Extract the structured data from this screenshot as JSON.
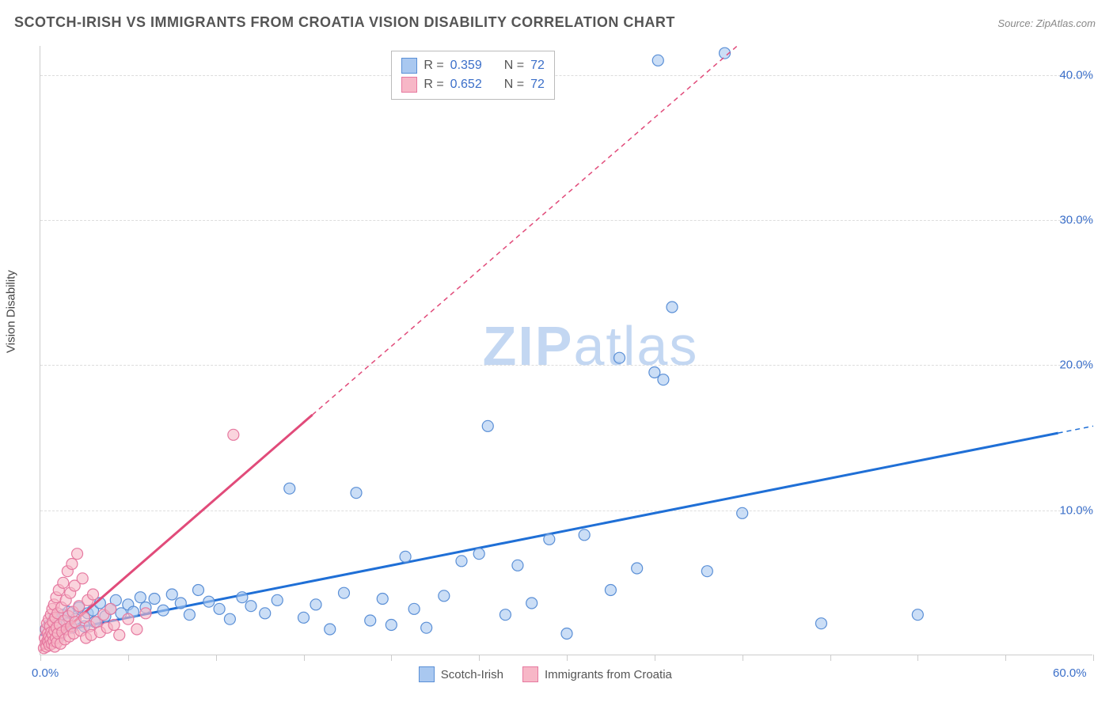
{
  "title": "SCOTCH-IRISH VS IMMIGRANTS FROM CROATIA VISION DISABILITY CORRELATION CHART",
  "source_label": "Source:",
  "source_name": "ZipAtlas.com",
  "y_axis_label": "Vision Disability",
  "watermark_bold": "ZIP",
  "watermark_light": "atlas",
  "chart": {
    "type": "scatter",
    "xlim": [
      0,
      60
    ],
    "ylim": [
      0,
      42
    ],
    "x_origin_label": "0.0%",
    "x_max_label": "60.0%",
    "y_ticks": [
      {
        "value": 10,
        "label": "10.0%"
      },
      {
        "value": 20,
        "label": "20.0%"
      },
      {
        "value": 30,
        "label": "30.0%"
      },
      {
        "value": 40,
        "label": "40.0%"
      }
    ],
    "x_tick_positions": [
      0,
      5,
      10,
      15,
      20,
      25,
      30,
      35,
      40,
      45,
      50,
      55,
      60
    ],
    "background_color": "#ffffff",
    "grid_color": "#dddddd",
    "axis_color": "#cccccc",
    "marker_radius": 7,
    "marker_stroke_width": 1.2,
    "trend_line_width": 3,
    "trend_extrapolate_dash": "6,5",
    "series": [
      {
        "id": "scotch_irish",
        "label": "Scotch-Irish",
        "color_fill": "#a9c8f0",
        "color_stroke": "#5a8fd6",
        "trend_color": "#1f6fd6",
        "r_value": "0.359",
        "n_value": "72",
        "trend_solid_x_end": 58,
        "trend": {
          "slope": 0.24,
          "intercept": 1.4
        },
        "points": [
          [
            0.3,
            1.8
          ],
          [
            0.5,
            2.1
          ],
          [
            0.7,
            1.5
          ],
          [
            0.8,
            2.6
          ],
          [
            1.0,
            2.0
          ],
          [
            1.1,
            1.3
          ],
          [
            1.3,
            2.8
          ],
          [
            1.5,
            2.2
          ],
          [
            1.6,
            3.0
          ],
          [
            1.8,
            1.9
          ],
          [
            2.0,
            2.5
          ],
          [
            2.2,
            3.3
          ],
          [
            2.5,
            2.0
          ],
          [
            2.7,
            2.9
          ],
          [
            3.0,
            3.1
          ],
          [
            3.1,
            2.3
          ],
          [
            3.4,
            3.6
          ],
          [
            3.7,
            2.7
          ],
          [
            4.0,
            3.2
          ],
          [
            4.3,
            3.8
          ],
          [
            4.6,
            2.9
          ],
          [
            5.0,
            3.5
          ],
          [
            5.3,
            3.0
          ],
          [
            5.7,
            4.0
          ],
          [
            6.0,
            3.3
          ],
          [
            6.5,
            3.9
          ],
          [
            7.0,
            3.1
          ],
          [
            7.5,
            4.2
          ],
          [
            8.0,
            3.6
          ],
          [
            8.5,
            2.8
          ],
          [
            9.0,
            4.5
          ],
          [
            9.6,
            3.7
          ],
          [
            10.2,
            3.2
          ],
          [
            10.8,
            2.5
          ],
          [
            11.5,
            4.0
          ],
          [
            12.0,
            3.4
          ],
          [
            12.8,
            2.9
          ],
          [
            13.5,
            3.8
          ],
          [
            14.2,
            11.5
          ],
          [
            15.0,
            2.6
          ],
          [
            15.7,
            3.5
          ],
          [
            16.5,
            1.8
          ],
          [
            17.3,
            4.3
          ],
          [
            18.0,
            11.2
          ],
          [
            18.8,
            2.4
          ],
          [
            19.5,
            3.9
          ],
          [
            20.0,
            2.1
          ],
          [
            20.8,
            6.8
          ],
          [
            21.3,
            3.2
          ],
          [
            22.0,
            1.9
          ],
          [
            23.0,
            4.1
          ],
          [
            24.0,
            6.5
          ],
          [
            25.0,
            7.0
          ],
          [
            25.5,
            15.8
          ],
          [
            26.5,
            2.8
          ],
          [
            27.2,
            6.2
          ],
          [
            28.0,
            3.6
          ],
          [
            29.0,
            8.0
          ],
          [
            30.0,
            1.5
          ],
          [
            31.0,
            8.3
          ],
          [
            32.5,
            4.5
          ],
          [
            33.0,
            20.5
          ],
          [
            34.0,
            6.0
          ],
          [
            35.0,
            19.5
          ],
          [
            35.5,
            19.0
          ],
          [
            36.0,
            24.0
          ],
          [
            38.0,
            5.8
          ],
          [
            40.0,
            9.8
          ],
          [
            44.5,
            2.2
          ],
          [
            50.0,
            2.8
          ],
          [
            39.0,
            41.5
          ],
          [
            35.2,
            41.0
          ]
        ]
      },
      {
        "id": "croatia",
        "label": "Immigrants from Croatia",
        "color_fill": "#f7b7c7",
        "color_stroke": "#e679a0",
        "trend_color": "#e14b7a",
        "r_value": "0.652",
        "n_value": "72",
        "trend_solid_x_end": 15.5,
        "trend": {
          "slope": 1.05,
          "intercept": 0.3
        },
        "points": [
          [
            0.2,
            0.5
          ],
          [
            0.25,
            1.2
          ],
          [
            0.3,
            0.8
          ],
          [
            0.32,
            1.8
          ],
          [
            0.35,
            0.6
          ],
          [
            0.38,
            2.2
          ],
          [
            0.4,
            1.0
          ],
          [
            0.42,
            1.5
          ],
          [
            0.45,
            0.9
          ],
          [
            0.48,
            2.5
          ],
          [
            0.5,
            1.3
          ],
          [
            0.52,
            0.7
          ],
          [
            0.55,
            2.0
          ],
          [
            0.58,
            1.1
          ],
          [
            0.6,
            2.8
          ],
          [
            0.62,
            1.6
          ],
          [
            0.65,
            0.8
          ],
          [
            0.68,
            3.2
          ],
          [
            0.7,
            1.4
          ],
          [
            0.72,
            2.3
          ],
          [
            0.75,
            1.0
          ],
          [
            0.78,
            3.5
          ],
          [
            0.8,
            1.7
          ],
          [
            0.82,
            0.6
          ],
          [
            0.85,
            2.6
          ],
          [
            0.88,
            1.2
          ],
          [
            0.9,
            4.0
          ],
          [
            0.92,
            1.9
          ],
          [
            0.95,
            0.9
          ],
          [
            0.98,
            2.9
          ],
          [
            1.0,
            1.5
          ],
          [
            1.05,
            4.5
          ],
          [
            1.1,
            2.1
          ],
          [
            1.15,
            0.8
          ],
          [
            1.2,
            3.3
          ],
          [
            1.25,
            1.6
          ],
          [
            1.3,
            5.0
          ],
          [
            1.35,
            2.4
          ],
          [
            1.4,
            1.1
          ],
          [
            1.45,
            3.8
          ],
          [
            1.5,
            1.8
          ],
          [
            1.55,
            5.8
          ],
          [
            1.6,
            2.7
          ],
          [
            1.65,
            1.3
          ],
          [
            1.7,
            4.3
          ],
          [
            1.75,
            2.0
          ],
          [
            1.8,
            6.3
          ],
          [
            1.85,
            3.0
          ],
          [
            1.9,
            1.5
          ],
          [
            1.95,
            4.8
          ],
          [
            2.0,
            2.3
          ],
          [
            2.1,
            7.0
          ],
          [
            2.2,
            3.4
          ],
          [
            2.3,
            1.7
          ],
          [
            2.4,
            5.3
          ],
          [
            2.5,
            2.6
          ],
          [
            2.6,
            1.2
          ],
          [
            2.7,
            3.8
          ],
          [
            2.8,
            2.0
          ],
          [
            2.9,
            1.4
          ],
          [
            3.0,
            4.2
          ],
          [
            3.2,
            2.3
          ],
          [
            3.4,
            1.6
          ],
          [
            3.6,
            2.8
          ],
          [
            3.8,
            1.9
          ],
          [
            4.0,
            3.2
          ],
          [
            4.2,
            2.1
          ],
          [
            4.5,
            1.4
          ],
          [
            5.0,
            2.5
          ],
          [
            5.5,
            1.8
          ],
          [
            6.0,
            2.9
          ],
          [
            11.0,
            15.2
          ]
        ]
      }
    ],
    "legend_top": {
      "r_label": "R =",
      "n_label": "N ="
    },
    "legend_bottom_items": [
      {
        "ref": "scotch_irish"
      },
      {
        "ref": "croatia"
      }
    ]
  },
  "colors": {
    "title": "#555555",
    "source": "#888888",
    "axis_label": "#444444",
    "blue_text": "#3b6fc9",
    "pink_text": "#e14b7a",
    "watermark": "#c3d7f2"
  }
}
